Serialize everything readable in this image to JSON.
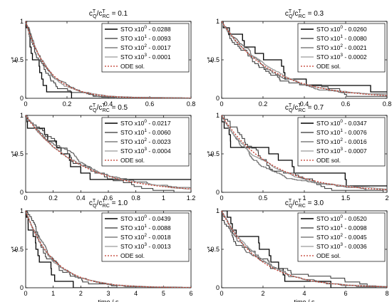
{
  "chart_data": [
    {
      "type": "line",
      "title": {
        "prefix": "c",
        "sup1": "T",
        "sub1": "Q",
        "mid": "/c",
        "sup2": "T",
        "sub2": "RC",
        "suffix": " = 0.1"
      },
      "ylabel": "χ*",
      "xlabel": "",
      "xlim": [
        0,
        0.8
      ],
      "ylim": [
        0,
        1
      ],
      "xticks": [
        "0",
        "0.2",
        "0.4",
        "0.6",
        "0.8"
      ],
      "yticks": [
        "0",
        "0.5",
        "1"
      ],
      "decay_rate": 9,
      "legend": [
        {
          "name": "STO x10",
          "exp": "0",
          "val": " - 0.0288"
        },
        {
          "name": "STO x10",
          "exp": "1",
          "val": " - 0.0093"
        },
        {
          "name": "STO x10",
          "exp": "2",
          "val": " - 0.0017"
        },
        {
          "name": "STO x10",
          "exp": "3",
          "val": " - 0.0001"
        },
        {
          "name": "ODE sol.",
          "exp": "",
          "val": ""
        }
      ]
    },
    {
      "type": "line",
      "title": {
        "prefix": "c",
        "sup1": "T",
        "sub1": "Q",
        "mid": "/c",
        "sup2": "T",
        "sub2": "RC",
        "suffix": " = 0.3"
      },
      "ylabel": "χ*",
      "xlabel": "",
      "xlim": [
        0,
        0.8
      ],
      "ylim": [
        0,
        1
      ],
      "xticks": [
        "0",
        "0.2",
        "0.4",
        "0.6",
        "0.8"
      ],
      "yticks": [
        "0",
        "0.5",
        "1"
      ],
      "decay_rate": 4.2,
      "legend": [
        {
          "name": "STO x10",
          "exp": "0",
          "val": " - 0.0260"
        },
        {
          "name": "STO x10",
          "exp": "1",
          "val": " - 0.0080"
        },
        {
          "name": "STO x10",
          "exp": "2",
          "val": " - 0.0021"
        },
        {
          "name": "STO x10",
          "exp": "3",
          "val": " - 0.0002"
        },
        {
          "name": "ODE sol.",
          "exp": "",
          "val": ""
        }
      ]
    },
    {
      "type": "line",
      "title": {
        "prefix": "c",
        "sup1": "T",
        "sub1": "Q",
        "mid": "/c",
        "sup2": "T",
        "sub2": "RC",
        "suffix": " = 0.5"
      },
      "ylabel": "χ*",
      "xlabel": "",
      "xlim": [
        0,
        1.2
      ],
      "ylim": [
        0,
        1
      ],
      "xticks": [
        "0",
        "0.2",
        "0.4",
        "0.6",
        "0.8",
        "1",
        "1.2"
      ],
      "yticks": [
        "0",
        "0.5",
        "1"
      ],
      "decay_rate": 2.6,
      "legend": [
        {
          "name": "STO x10",
          "exp": "0",
          "val": " - 0.0217"
        },
        {
          "name": "STO x10",
          "exp": "1",
          "val": " - 0.0060"
        },
        {
          "name": "STO x10",
          "exp": "2",
          "val": " - 0.0023"
        },
        {
          "name": "STO x10",
          "exp": "3",
          "val": " - 0.0004"
        },
        {
          "name": "ODE sol.",
          "exp": "",
          "val": ""
        }
      ]
    },
    {
      "type": "line",
      "title": {
        "prefix": "c",
        "sup1": "T",
        "sub1": "Q",
        "mid": "/c",
        "sup2": "T",
        "sub2": "RC",
        "suffix": " = 0.7"
      },
      "ylabel": "χ*",
      "xlabel": "",
      "xlim": [
        0,
        2
      ],
      "ylim": [
        0,
        1
      ],
      "xticks": [
        "0",
        "0.5",
        "1",
        "1.5",
        "2"
      ],
      "yticks": [
        "0",
        "0.5",
        "1"
      ],
      "decay_rate": 1.7,
      "legend": [
        {
          "name": "STO x10",
          "exp": "0",
          "val": " - 0.0347"
        },
        {
          "name": "STO x10",
          "exp": "1",
          "val": " - 0.0076"
        },
        {
          "name": "STO x10",
          "exp": "2",
          "val": " - 0.0016"
        },
        {
          "name": "STO x10",
          "exp": "3",
          "val": " - 0.0007"
        },
        {
          "name": "ODE sol.",
          "exp": "",
          "val": ""
        }
      ]
    },
    {
      "type": "line",
      "title": {
        "prefix": "c",
        "sup1": "T",
        "sub1": "Q",
        "mid": "/c",
        "sup2": "T",
        "sub2": "RC",
        "suffix": " = 1.0"
      },
      "ylabel": "χ*",
      "xlabel": "time / s",
      "xlim": [
        0,
        6
      ],
      "ylim": [
        0,
        1
      ],
      "xticks": [
        "0",
        "1",
        "2",
        "3",
        "4",
        "5",
        "6"
      ],
      "yticks": [
        "0",
        "0.5",
        "1"
      ],
      "decay_rate": 1.0,
      "legend": [
        {
          "name": "STO x10",
          "exp": "0",
          "val": " - 0.0439"
        },
        {
          "name": "STO x10",
          "exp": "1",
          "val": " - 0.0088"
        },
        {
          "name": "STO x10",
          "exp": "2",
          "val": " - 0.0018"
        },
        {
          "name": "STO x10",
          "exp": "3",
          "val": " - 0.0013"
        },
        {
          "name": "ODE sol.",
          "exp": "",
          "val": ""
        }
      ]
    },
    {
      "type": "line",
      "title": {
        "prefix": "c",
        "sup1": "T",
        "sub1": "Q",
        "mid": "/c",
        "sup2": "T",
        "sub2": "RC",
        "suffix": " = 3.0"
      },
      "ylabel": "χ*",
      "xlabel": "time / s",
      "xlim": [
        0,
        8
      ],
      "ylim": [
        0,
        1
      ],
      "xticks": [
        "0",
        "2",
        "4",
        "6",
        "8"
      ],
      "yticks": [
        "0",
        "0.5",
        "1"
      ],
      "decay_rate": 0.55,
      "legend": [
        {
          "name": "STO x10",
          "exp": "0",
          "val": " - 0.0520"
        },
        {
          "name": "STO x10",
          "exp": "1",
          "val": " - 0.0098"
        },
        {
          "name": "STO x10",
          "exp": "2",
          "val": " - 0.0045"
        },
        {
          "name": "STO x10",
          "exp": "3",
          "val": " - 0.0036"
        },
        {
          "name": "ODE sol.",
          "exp": "",
          "val": ""
        }
      ]
    }
  ],
  "series_style": [
    {
      "color": "#000000",
      "dash": ""
    },
    {
      "color": "#333333",
      "dash": ""
    },
    {
      "color": "#666666",
      "dash": ""
    },
    {
      "color": "#9a9a9a",
      "dash": ""
    },
    {
      "color": "#c0392b",
      "dash": "2,2"
    }
  ]
}
